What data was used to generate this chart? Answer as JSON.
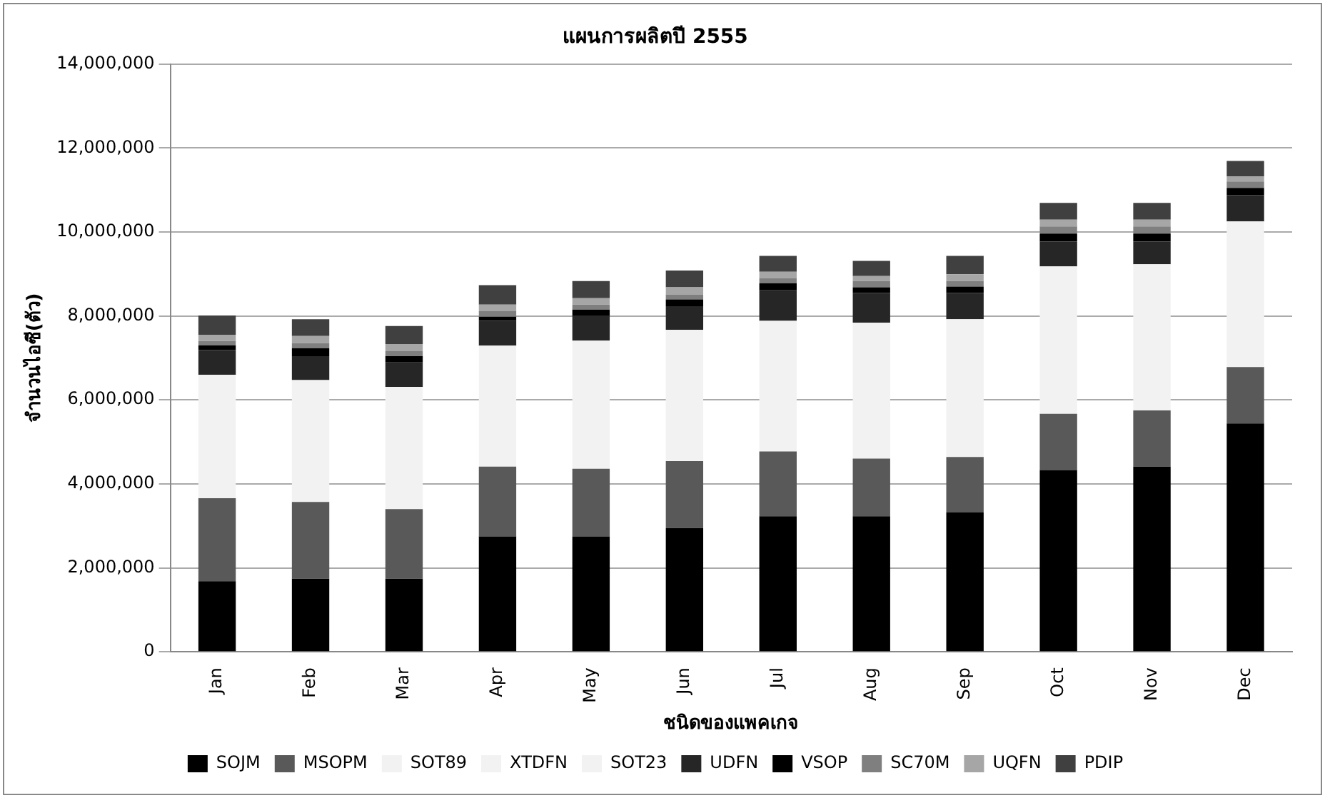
{
  "chart_data": {
    "type": "bar",
    "stacked": true,
    "title": "แผนการผลิตปี 2555",
    "xlabel": "ชนิดของแพคเกจ",
    "ylabel": "จำนวนไอซี(ตัว)",
    "categories": [
      "Jan",
      "Feb",
      "Mar",
      "Apr",
      "May",
      "Jun",
      "Jul",
      "Aug",
      "Sep",
      "Oct",
      "Nov",
      "Dec"
    ],
    "series": [
      {
        "name": "SOJM",
        "color": "#000000",
        "values": [
          1680000,
          1740000,
          1740000,
          2750000,
          2750000,
          2950000,
          3230000,
          3230000,
          3320000,
          4330000,
          4410000,
          5440000
        ]
      },
      {
        "name": "MSOPM",
        "color": "#595959",
        "values": [
          1980000,
          1830000,
          1660000,
          1660000,
          1610000,
          1590000,
          1540000,
          1370000,
          1320000,
          1340000,
          1340000,
          1340000
        ]
      },
      {
        "name": "SOT89",
        "color": "#f2f2f2",
        "values": [
          2940000,
          2900000,
          2910000,
          2880000,
          3050000,
          3130000,
          3110000,
          3240000,
          3280000,
          3510000,
          3480000,
          3470000
        ]
      },
      {
        "name": "XTDFN",
        "color": "#f2f2f2",
        "values": [
          null,
          null,
          null,
          null,
          null,
          null,
          null,
          null,
          null,
          null,
          null,
          null
        ]
      },
      {
        "name": "SOT23",
        "color": "#f2f2f2",
        "values": [
          null,
          null,
          null,
          null,
          null,
          null,
          null,
          null,
          null,
          null,
          null,
          null
        ]
      },
      {
        "name": "UDFN",
        "color": "#262626",
        "values": [
          590000,
          570000,
          580000,
          590000,
          600000,
          560000,
          730000,
          710000,
          630000,
          590000,
          540000,
          630000
        ]
      },
      {
        "name": "VSOP",
        "color": "#000000",
        "values": [
          110000,
          190000,
          150000,
          100000,
          140000,
          160000,
          170000,
          130000,
          150000,
          190000,
          190000,
          170000
        ]
      },
      {
        "name": "SC70M",
        "color": "#7f7f7f",
        "values": [
          100000,
          120000,
          120000,
          130000,
          120000,
          120000,
          120000,
          150000,
          130000,
          170000,
          170000,
          150000
        ]
      },
      {
        "name": "UQFN",
        "color": "#a6a6a6",
        "values": [
          150000,
          170000,
          170000,
          160000,
          150000,
          170000,
          150000,
          120000,
          160000,
          160000,
          160000,
          120000
        ]
      },
      {
        "name": "PDIP",
        "color": "#404040",
        "values": [
          460000,
          400000,
          430000,
          460000,
          410000,
          400000,
          380000,
          360000,
          440000,
          400000,
          400000,
          370000
        ]
      }
    ],
    "ylim": [
      0,
      14000000
    ],
    "yticks": [
      {
        "value": 0,
        "label": "0"
      },
      {
        "value": 2000000,
        "label": "2,000,000"
      },
      {
        "value": 4000000,
        "label": "4,000,000"
      },
      {
        "value": 6000000,
        "label": "6,000,000"
      },
      {
        "value": 8000000,
        "label": "8,000,000"
      },
      {
        "value": 10000000,
        "label": "10,000,000"
      },
      {
        "value": 12000000,
        "label": "12,000,000"
      },
      {
        "value": 14000000,
        "label": "14,000,000"
      }
    ],
    "grid": "y",
    "legend": "bottom"
  }
}
